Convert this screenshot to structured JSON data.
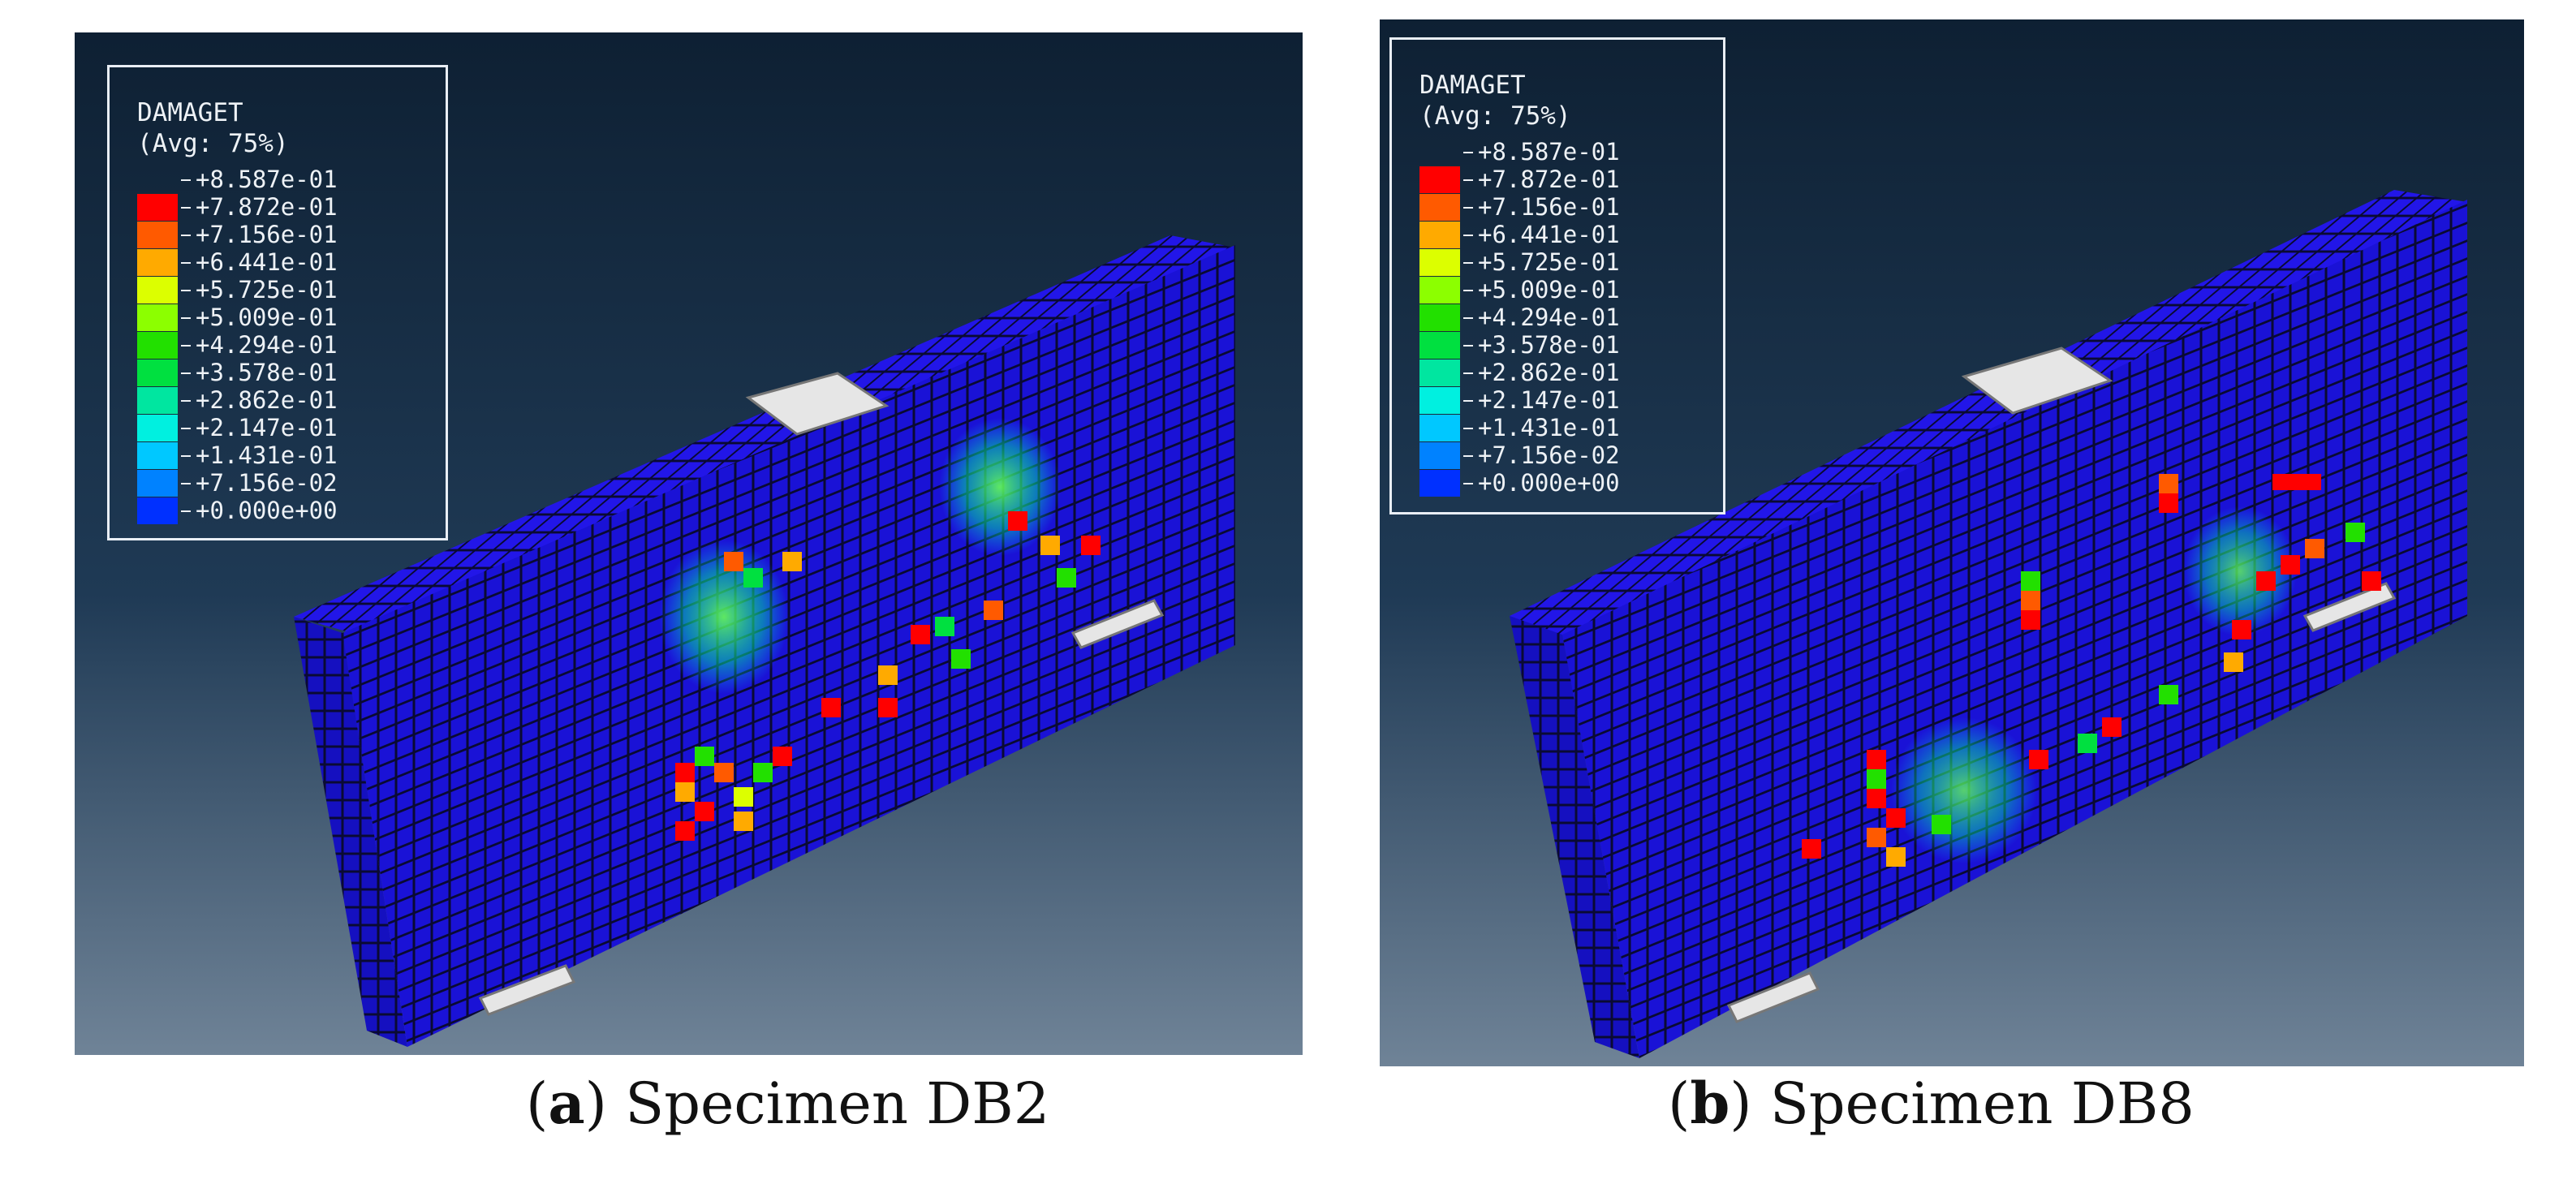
{
  "legend": {
    "title": "DAMAGET",
    "subtitle": "(Avg: 75%)",
    "levels": [
      {
        "label": "+8.587e-01",
        "color": "#ff0000"
      },
      {
        "label": "+7.872e-01",
        "color": "#ff5a00"
      },
      {
        "label": "+7.156e-01",
        "color": "#ffaa00"
      },
      {
        "label": "+6.441e-01",
        "color": "#dcff00"
      },
      {
        "label": "+5.725e-01",
        "color": "#8cff00"
      },
      {
        "label": "+5.009e-01",
        "color": "#22e000"
      },
      {
        "label": "+4.294e-01",
        "color": "#00e040"
      },
      {
        "label": "+3.578e-01",
        "color": "#00e6a0"
      },
      {
        "label": "+2.862e-01",
        "color": "#00f0e0"
      },
      {
        "label": "+2.147e-01",
        "color": "#00c8ff"
      },
      {
        "label": "+1.431e-01",
        "color": "#0082ff"
      },
      {
        "label": "+7.156e-02",
        "color": "#0030ff"
      },
      {
        "label": "+0.000e+00",
        "color": null
      }
    ]
  },
  "panels": [
    {
      "letter": "a",
      "name": "Specimen DB2"
    },
    {
      "letter": "b",
      "name": "Specimen DB8"
    }
  ],
  "colors": {
    "background_top": "#0e2033",
    "background_bottom": "#6f8397",
    "mesh_blue": "#1a12d6",
    "mesh_line": "#0a0a33",
    "support_plate": "#e6e6e6"
  }
}
